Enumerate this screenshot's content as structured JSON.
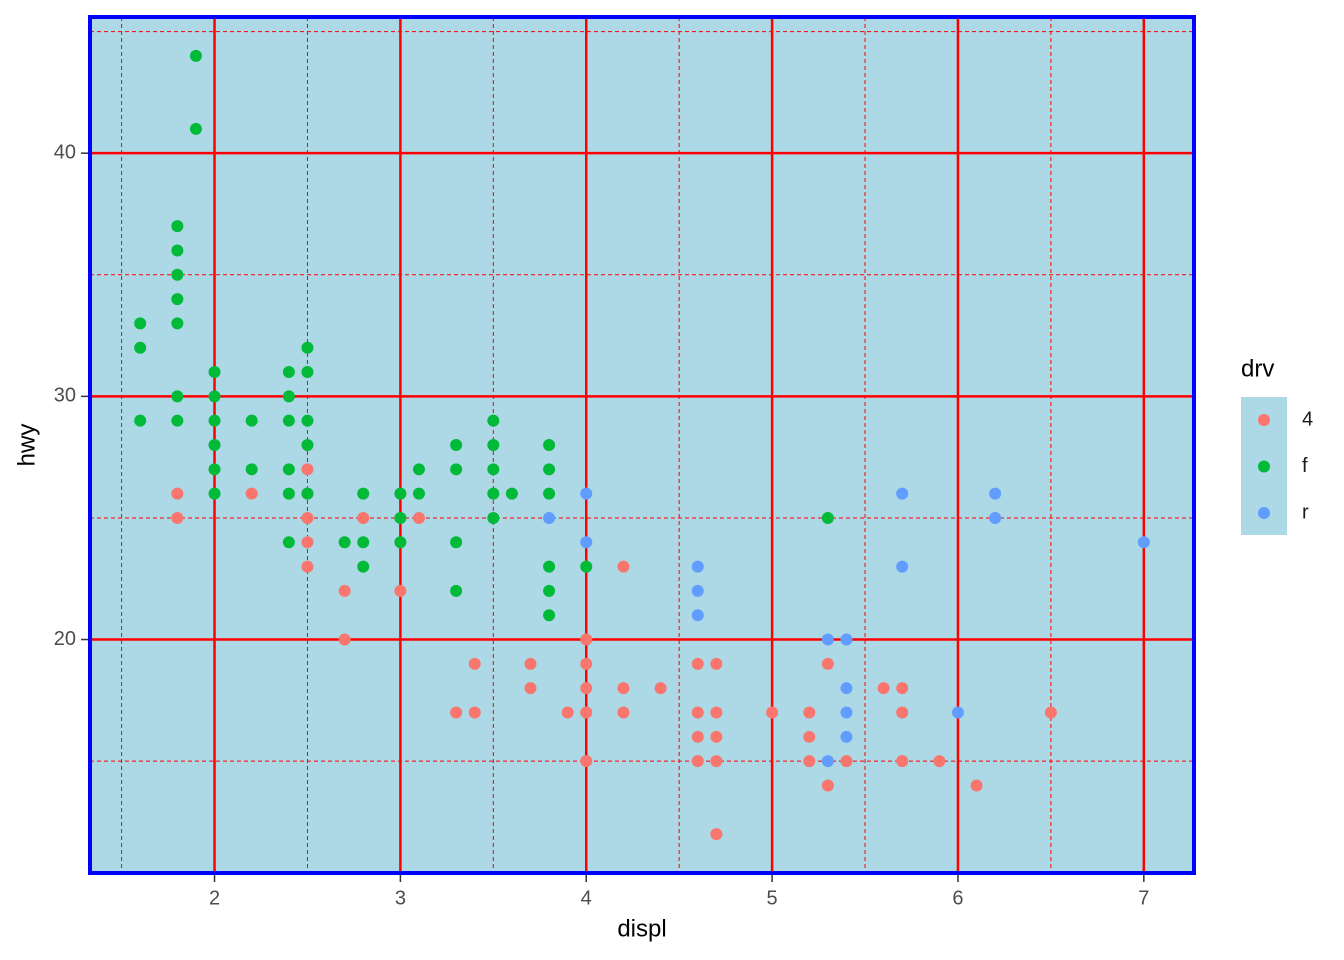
{
  "chart_data": {
    "type": "scatter",
    "x_label": "displ",
    "y_label": "hwy",
    "legend_title": "drv",
    "xlim": [
      1.33,
      7.27
    ],
    "ylim": [
      10.4,
      45.6
    ],
    "xticks": [
      2,
      3,
      4,
      5,
      6,
      7
    ],
    "yticks": [
      20,
      30,
      40
    ],
    "xminorticks": [
      1.5,
      2.5,
      3.5,
      4.5,
      5.5,
      6.5
    ],
    "yminorticks": [
      15,
      25,
      35,
      45
    ],
    "grid": true,
    "legend_position": "right",
    "series": [
      {
        "name": "4",
        "color": "#F8766D",
        "x": [
          1.8,
          1.8,
          2.2,
          2.5,
          2.5,
          2.5,
          2.5,
          2.5,
          2.7,
          2.7,
          2.8,
          3.0,
          3.1,
          3.3,
          3.4,
          3.4,
          3.7,
          3.7,
          3.9,
          4.0,
          4.0,
          4.0,
          4.0,
          4.0,
          4.2,
          4.2,
          4.2,
          4.4,
          4.6,
          4.6,
          4.6,
          4.6,
          4.7,
          4.7,
          4.7,
          4.7,
          4.7,
          5.0,
          5.2,
          5.2,
          5.2,
          5.3,
          5.3,
          5.4,
          5.6,
          5.7,
          5.7,
          5.7,
          5.9,
          6.1,
          6.5
        ],
        "values": [
          26,
          25,
          26,
          27,
          26,
          25,
          24,
          23,
          22,
          20,
          25,
          22,
          25,
          17,
          19,
          17,
          19,
          18,
          17,
          20,
          19,
          18,
          17,
          15,
          23,
          18,
          17,
          18,
          19,
          17,
          16,
          15,
          19,
          17,
          16,
          15,
          12,
          17,
          17,
          16,
          15,
          19,
          14,
          15,
          18,
          18,
          17,
          15,
          15,
          14,
          17
        ]
      },
      {
        "name": "f",
        "color": "#00BA38",
        "x": [
          1.6,
          1.6,
          1.6,
          1.8,
          1.8,
          1.8,
          1.8,
          1.8,
          1.8,
          1.8,
          1.9,
          1.9,
          2.0,
          2.0,
          2.0,
          2.0,
          2.0,
          2.0,
          2.2,
          2.2,
          2.4,
          2.4,
          2.4,
          2.4,
          2.4,
          2.4,
          2.5,
          2.5,
          2.5,
          2.5,
          2.5,
          2.7,
          2.8,
          2.8,
          2.8,
          3.0,
          3.0,
          3.0,
          3.1,
          3.1,
          3.3,
          3.3,
          3.3,
          3.3,
          3.5,
          3.5,
          3.5,
          3.5,
          3.5,
          3.6,
          3.8,
          3.8,
          3.8,
          3.8,
          3.8,
          3.8,
          4.0,
          5.3
        ],
        "values": [
          33,
          32,
          29,
          37,
          36,
          35,
          34,
          33,
          30,
          29,
          44,
          41,
          31,
          30,
          29,
          28,
          27,
          26,
          29,
          27,
          31,
          30,
          29,
          27,
          26,
          24,
          32,
          31,
          29,
          28,
          26,
          24,
          26,
          24,
          23,
          26,
          25,
          24,
          27,
          26,
          28,
          27,
          24,
          22,
          29,
          28,
          27,
          26,
          25,
          26,
          28,
          27,
          26,
          23,
          22,
          21,
          23,
          25
        ]
      },
      {
        "name": "r",
        "color": "#619CFF",
        "x": [
          3.8,
          4.0,
          4.0,
          4.6,
          4.6,
          4.6,
          5.3,
          5.3,
          5.4,
          5.4,
          5.4,
          5.4,
          5.7,
          5.7,
          6.0,
          6.2,
          6.2,
          7.0
        ],
        "values": [
          25,
          26,
          24,
          23,
          22,
          21,
          20,
          15,
          20,
          18,
          17,
          16,
          26,
          23,
          17,
          26,
          25,
          24
        ]
      }
    ]
  }
}
